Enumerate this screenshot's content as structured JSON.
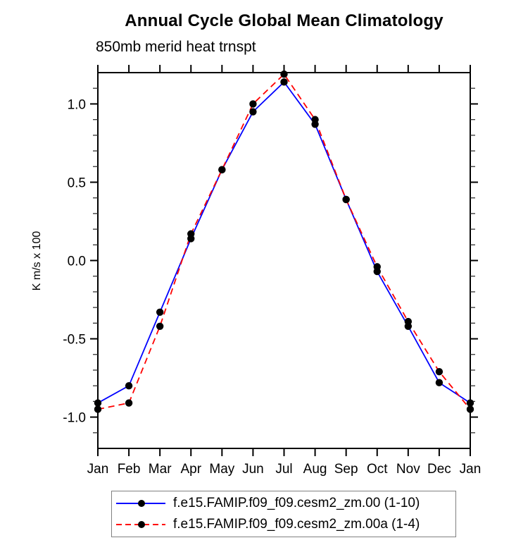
{
  "chart_data": {
    "type": "line",
    "title": "Annual Cycle Global Mean Climatology",
    "subtitle": "850mb merid heat trnspt",
    "ylabel": "K m/s x 100",
    "xlabel": "",
    "categories": [
      "Jan",
      "Feb",
      "Mar",
      "Apr",
      "May",
      "Jun",
      "Jul",
      "Aug",
      "Sep",
      "Oct",
      "Nov",
      "Dec",
      "Jan"
    ],
    "ylim": [
      -1.2,
      1.2
    ],
    "yticks": [
      -1.0,
      -0.5,
      0.0,
      0.5,
      1.0
    ],
    "ytick_labels": [
      "-1.0",
      "-0.5",
      "0.0",
      "0.5",
      "1.0"
    ],
    "y_minor_tick_step": 0.1,
    "grid": false,
    "legend_position": "bottom",
    "marker": "filled-circle",
    "marker_color": "#000000",
    "axis_color": "#000000",
    "series": [
      {
        "name": "f.e15.FAMIP.f09_f09.cesm2_zm.00 (1-10)",
        "color": "#0000ff",
        "style": "solid",
        "values": [
          -0.91,
          -0.8,
          -0.33,
          0.14,
          0.58,
          0.95,
          1.14,
          0.87,
          0.39,
          -0.07,
          -0.42,
          -0.78,
          -0.91
        ]
      },
      {
        "name": "f.e15.FAMIP.f09_f09.cesm2_zm.00a (1-4)",
        "color": "#ff0000",
        "style": "dashed",
        "values": [
          -0.95,
          -0.91,
          -0.42,
          0.17,
          0.58,
          1.0,
          1.19,
          0.9,
          0.39,
          -0.04,
          -0.39,
          -0.71,
          -0.95
        ]
      }
    ]
  }
}
